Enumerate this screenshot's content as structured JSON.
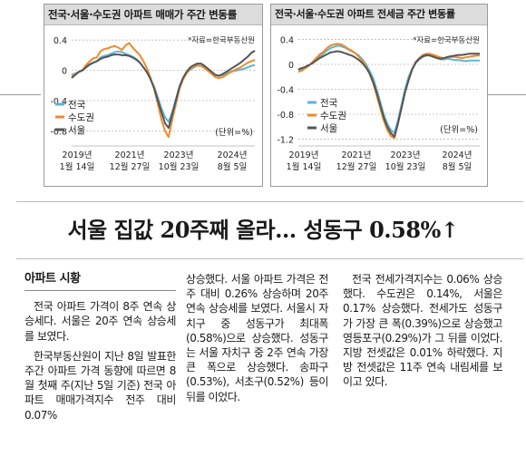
{
  "charts": [
    {
      "id": "left",
      "title": "전국·서울·수도권 아파트 매매가 주간 변동률",
      "source": "*자료=한국부동산원",
      "unit": "(단위=%)",
      "colors": {
        "national": "#5bb5d6",
        "capital": "#ef8a2a",
        "seoul": "#555555"
      },
      "chart_data": {
        "type": "line",
        "x_ticks": [
          {
            "year": "2019년",
            "date": "1월 14일"
          },
          {
            "year": "2021년",
            "date": "12월 27일"
          },
          {
            "year": "2023년",
            "date": "10월 23일"
          },
          {
            "year": "2024년",
            "date": "8월 5일"
          }
        ],
        "y_ticks": [
          "0.4",
          "0",
          "-0.4",
          "-0.8"
        ],
        "ylim": [
          -0.95,
          0.45
        ],
        "series": [
          {
            "name": "전국",
            "values": [
              -0.06,
              -0.04,
              -0.02,
              0.0,
              0.04,
              0.07,
              0.1,
              0.12,
              0.17,
              0.19,
              0.2,
              0.22,
              0.24,
              0.25,
              0.24,
              0.22,
              0.2,
              0.18,
              0.15,
              0.1,
              0.04,
              -0.03,
              -0.12,
              -0.22,
              -0.36,
              -0.5,
              -0.62,
              -0.68,
              -0.55,
              -0.38,
              -0.22,
              -0.1,
              -0.03,
              0.01,
              0.04,
              0.06,
              0.06,
              0.04,
              0.01,
              -0.03,
              -0.06,
              -0.07,
              -0.06,
              -0.04,
              -0.02,
              -0.01,
              0.0,
              0.01,
              0.02,
              0.04,
              0.06,
              0.07
            ]
          },
          {
            "name": "수도권",
            "values": [
              -0.08,
              -0.05,
              -0.02,
              0.0,
              0.07,
              0.12,
              0.16,
              0.17,
              0.25,
              0.28,
              0.29,
              0.31,
              0.32,
              0.3,
              0.27,
              0.33,
              0.36,
              0.3,
              0.25,
              0.2,
              0.12,
              0.02,
              -0.1,
              -0.25,
              -0.45,
              -0.65,
              -0.8,
              -0.88,
              -0.65,
              -0.45,
              -0.25,
              -0.12,
              -0.04,
              0.02,
              0.05,
              0.07,
              0.06,
              0.03,
              -0.01,
              -0.05,
              -0.09,
              -0.1,
              -0.09,
              -0.06,
              -0.03,
              -0.01,
              0.02,
              0.04,
              0.07,
              0.1,
              0.12,
              0.14
            ]
          },
          {
            "name": "서울",
            "values": [
              -0.1,
              -0.06,
              -0.02,
              0.0,
              0.04,
              0.08,
              0.1,
              0.12,
              0.15,
              0.17,
              0.18,
              0.2,
              0.21,
              0.21,
              0.2,
              0.2,
              0.19,
              0.17,
              0.14,
              0.1,
              0.04,
              -0.03,
              -0.12,
              -0.24,
              -0.4,
              -0.55,
              -0.7,
              -0.76,
              -0.58,
              -0.4,
              -0.22,
              -0.1,
              -0.02,
              0.04,
              0.07,
              0.09,
              0.09,
              0.06,
              0.02,
              -0.02,
              -0.06,
              -0.07,
              -0.05,
              -0.02,
              0.01,
              0.04,
              0.07,
              0.1,
              0.14,
              0.18,
              0.23,
              0.26
            ]
          }
        ]
      }
    },
    {
      "id": "right",
      "title": "전국·서울·수도권 아파트 전세금 주간 변동률",
      "source": "*자료=한국부동산원",
      "unit": "(단위=%)",
      "colors": {
        "national": "#5bb5d6",
        "capital": "#ef8a2a",
        "seoul": "#555555"
      },
      "chart_data": {
        "type": "line",
        "x_ticks": [
          {
            "year": "2019년",
            "date": "1월 14일"
          },
          {
            "year": "2021년",
            "date": "12월 27일"
          },
          {
            "year": "2023년",
            "date": "10월 23일"
          },
          {
            "year": "2024년",
            "date": "8월 5일"
          }
        ],
        "y_ticks": [
          "0.4",
          "0",
          "-0.4",
          "-0.8",
          "-1.2"
        ],
        "ylim": [
          -1.25,
          0.45
        ],
        "series": [
          {
            "name": "전국",
            "values": [
              -0.1,
              -0.08,
              -0.05,
              -0.02,
              0.03,
              0.08,
              0.13,
              0.17,
              0.22,
              0.26,
              0.28,
              0.3,
              0.29,
              0.27,
              0.24,
              0.21,
              0.18,
              0.14,
              0.08,
              0.0,
              -0.1,
              -0.22,
              -0.4,
              -0.6,
              -0.8,
              -0.95,
              -1.05,
              -1.1,
              -0.9,
              -0.65,
              -0.4,
              -0.2,
              -0.07,
              0.02,
              0.08,
              0.12,
              0.14,
              0.14,
              0.12,
              0.1,
              0.08,
              0.08,
              0.09,
              0.08,
              0.07,
              0.07,
              0.06,
              0.05,
              0.06,
              0.06,
              0.06,
              0.06
            ]
          },
          {
            "name": "수도권",
            "values": [
              -0.12,
              -0.1,
              -0.06,
              -0.02,
              0.04,
              0.1,
              0.16,
              0.2,
              0.26,
              0.3,
              0.32,
              0.33,
              0.32,
              0.29,
              0.25,
              0.22,
              0.18,
              0.12,
              0.05,
              -0.03,
              -0.15,
              -0.3,
              -0.5,
              -0.7,
              -0.9,
              -1.05,
              -1.15,
              -1.18,
              -0.95,
              -0.7,
              -0.45,
              -0.25,
              -0.08,
              0.04,
              0.1,
              0.15,
              0.17,
              0.17,
              0.15,
              0.13,
              0.11,
              0.1,
              0.11,
              0.12,
              0.12,
              0.11,
              0.1,
              0.11,
              0.12,
              0.13,
              0.14,
              0.14
            ]
          },
          {
            "name": "서울",
            "values": [
              -0.08,
              -0.06,
              -0.04,
              -0.01,
              0.02,
              0.06,
              0.1,
              0.13,
              0.16,
              0.19,
              0.2,
              0.21,
              0.2,
              0.18,
              0.16,
              0.14,
              0.11,
              0.07,
              0.02,
              -0.05,
              -0.14,
              -0.28,
              -0.45,
              -0.65,
              -0.85,
              -1.0,
              -1.1,
              -1.16,
              -0.95,
              -0.7,
              -0.45,
              -0.25,
              -0.08,
              0.03,
              0.09,
              0.13,
              0.15,
              0.14,
              0.12,
              0.1,
              0.09,
              0.1,
              0.12,
              0.13,
              0.14,
              0.15,
              0.15,
              0.16,
              0.17,
              0.17,
              0.17,
              0.17
            ]
          }
        ]
      }
    }
  ],
  "article": {
    "headline": "서울 집값 20주째 올라… 성동구 0.58%↑",
    "section_title": "아파트 시황",
    "col1": {
      "p1": "전국 아파트 가격이 8주 연속 상승세다. 서울은 20주 연속 상승세를 보였다.",
      "p2": "한국부동산원이 지난 8일 발표한 주간 아파트 가격 동향에 따르면 8월 첫째 주(지난 5일 기준) 전국 아파트 매매가격지수 전주 대비 0.07%"
    },
    "col2": {
      "p1": "상승했다. 서울 아파트 가격은 전주 대비 0.26% 상승하며 20주 연속 상승세를 보였다. 서울시 자치구 중 성동구가 최대폭(0.58%)으로 상승했다. 성동구는 서울 자치구 중 2주 연속 가장 큰 폭으로 상승했다. 송파구(0.53%), 서초구(0.52%) 등이 뒤를 이었다."
    },
    "col3": {
      "p1": "전국 전세가격지수는 0.06% 상승했다. 수도권은 0.14%, 서울은 0.17% 상승했다. 전세가도 성동구가 가장 큰 폭(0.39%)으로 상승했고 영등포구(0.29%)가 그 뒤를 이었다. 지방 전셋값은 0.01% 하락했다. 지방 전셋값은 11주 연속 내림세를 보이고 있다."
    }
  }
}
